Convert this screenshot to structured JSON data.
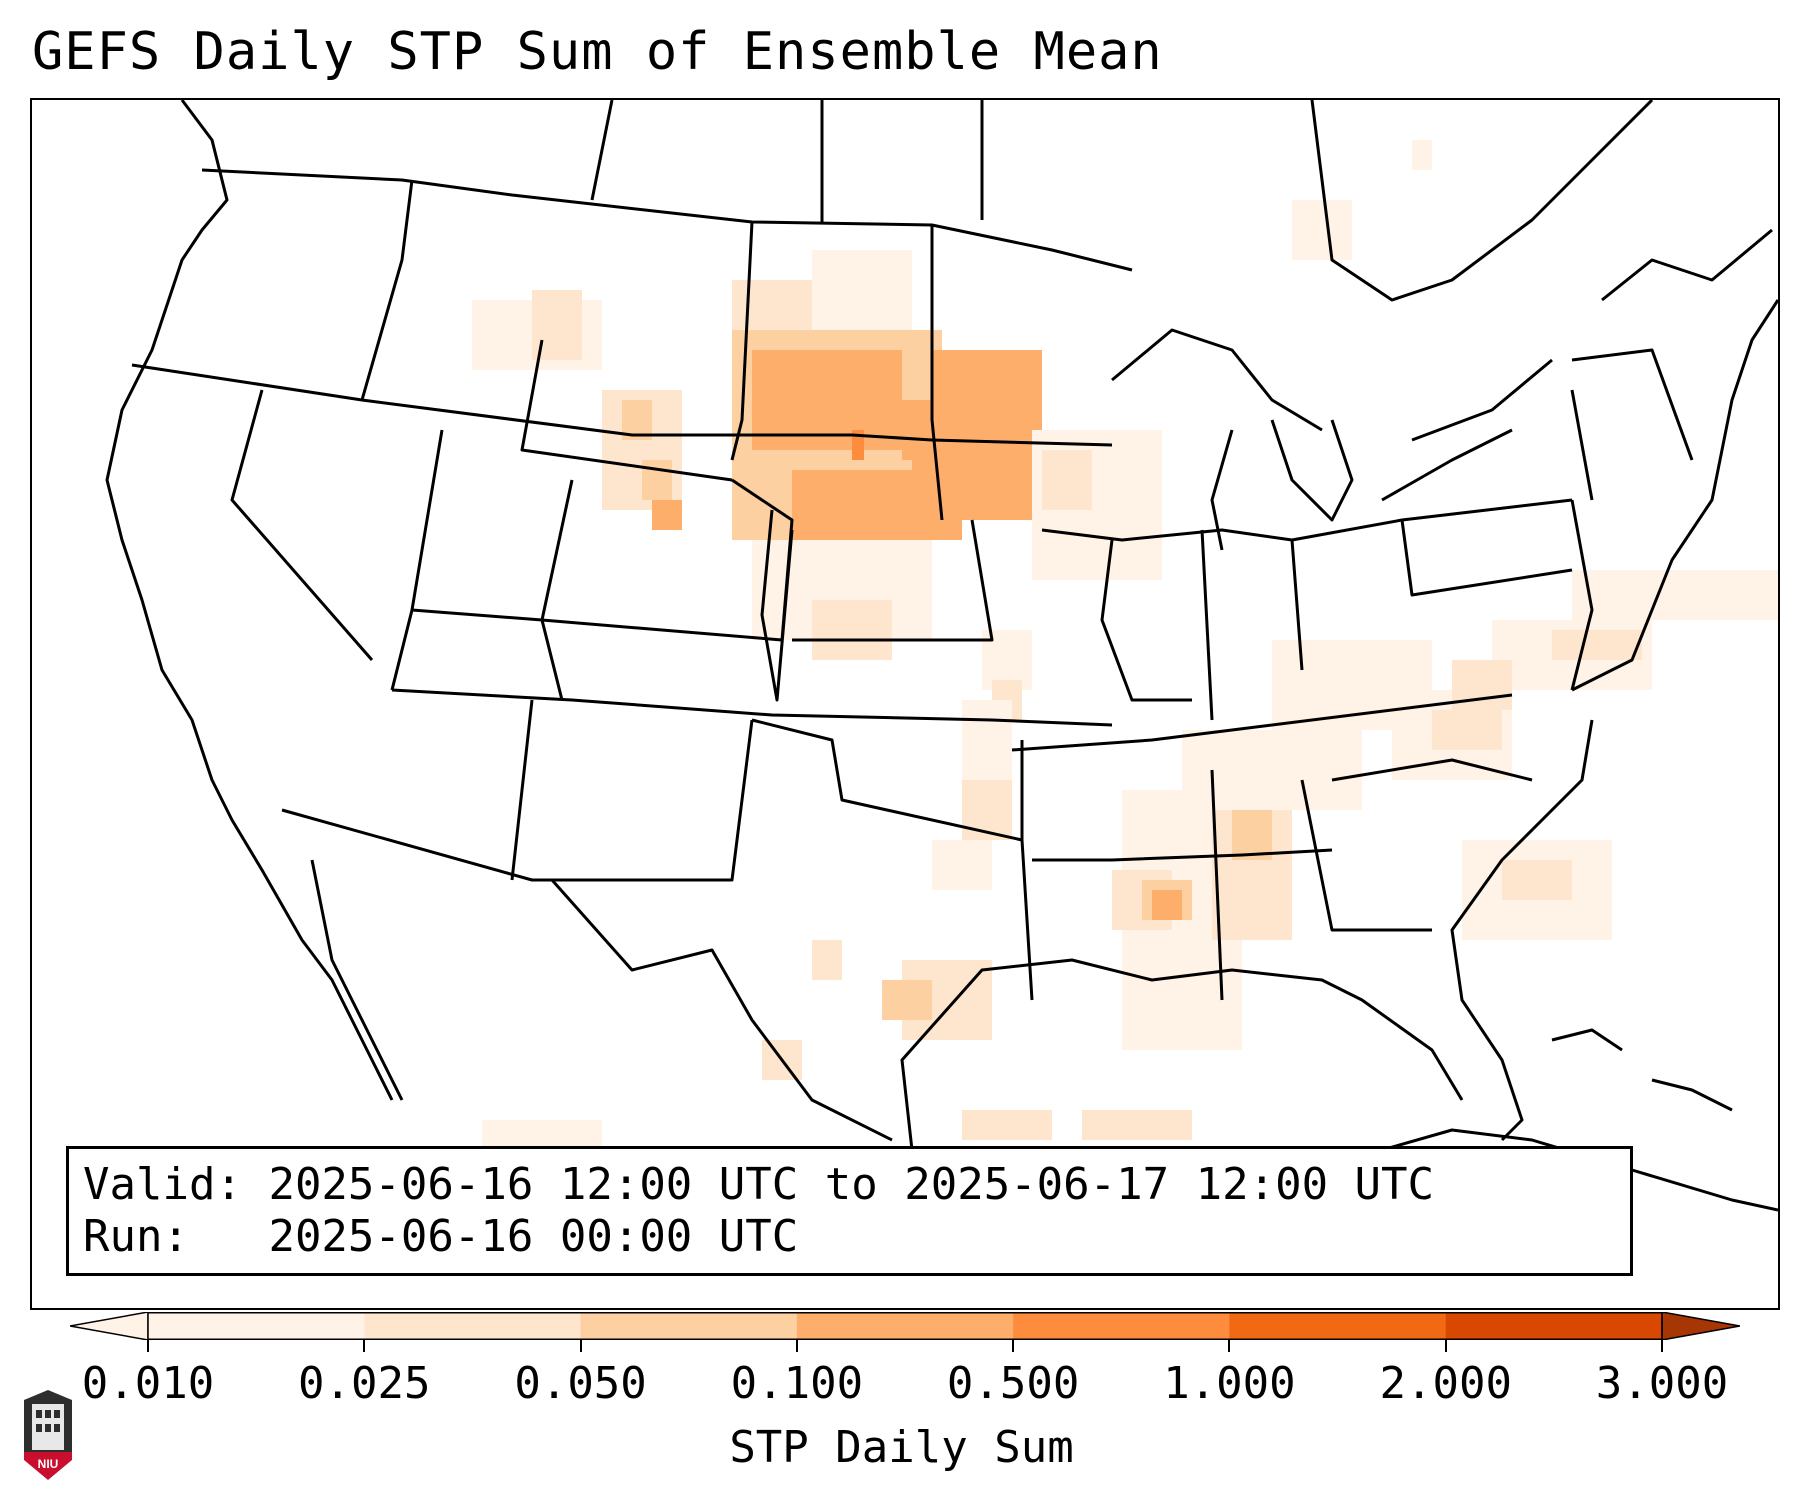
{
  "title": "GEFS Daily STP Sum of Ensemble Mean",
  "info_box": {
    "valid_label": "Valid:",
    "valid_text": "2025-06-16 12:00 UTC to 2025-06-17 12:00 UTC",
    "run_label": "Run:",
    "run_text": "2025-06-16 00:00 UTC"
  },
  "colorbar": {
    "label": "STP Daily Sum",
    "ticks": [
      "0.010",
      "0.025",
      "0.050",
      "0.100",
      "0.500",
      "1.000",
      "2.000",
      "3.000"
    ],
    "colors": [
      "#fff2e6",
      "#fee6ce",
      "#fdd0a2",
      "#fdae6b",
      "#fd8d3c",
      "#f16913",
      "#d94801",
      "#a63603"
    ],
    "extend": "both"
  },
  "logo": {
    "text": "NIU",
    "colors": {
      "shield": "#c8102e",
      "tower": "#3a3a3a"
    }
  },
  "map": {
    "projection": "Lambert conformal, CONUS",
    "colors": {
      "border": "#000000",
      "background": "#ffffff"
    }
  }
}
